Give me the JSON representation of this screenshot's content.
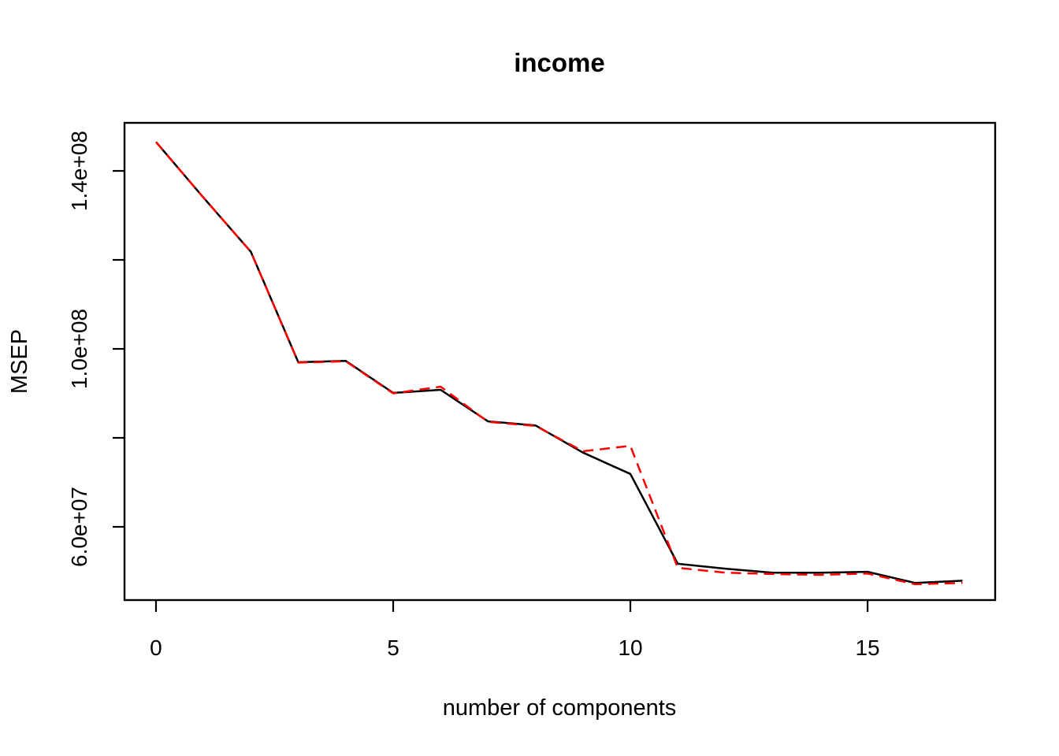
{
  "chart_data": {
    "type": "line",
    "title": "income",
    "xlabel": "number of components",
    "ylabel": "MSEP",
    "x": [
      0,
      1,
      2,
      3,
      4,
      5,
      6,
      7,
      8,
      9,
      10,
      11,
      12,
      13,
      14,
      15,
      16,
      17
    ],
    "series": [
      {
        "name": "black_solid",
        "color": "#000000",
        "style": "solid",
        "values": [
          146500000,
          134000000,
          121800000,
          97000000,
          97300000,
          90100000,
          90800000,
          83700000,
          82800000,
          76700000,
          71900000,
          51700000,
          50600000,
          49700000,
          49700000,
          49900000,
          47400000,
          47900000
        ]
      },
      {
        "name": "red_dashed",
        "color": "#ff0000",
        "style": "dashed",
        "values": [
          146500000,
          134000000,
          121800000,
          96900000,
          97200000,
          90000000,
          91500000,
          83600000,
          82700000,
          77000000,
          78200000,
          50800000,
          49700000,
          49400000,
          49200000,
          49500000,
          47100000,
          47400000
        ]
      }
    ],
    "xlim": [
      -0.664,
      17.69
    ],
    "ylim": [
      43540000,
      150800000
    ],
    "xticks": [
      {
        "value": 0,
        "label": "0"
      },
      {
        "value": 5,
        "label": "5"
      },
      {
        "value": 10,
        "label": "10"
      },
      {
        "value": 15,
        "label": "15"
      }
    ],
    "yticks": [
      {
        "value": 140000000,
        "label": "1.4e+08"
      },
      {
        "value": 120000000,
        "label": ""
      },
      {
        "value": 100000000,
        "label": "1.0e+08"
      },
      {
        "value": 80000000,
        "label": ""
      },
      {
        "value": 60000000,
        "label": "6.0e+07"
      }
    ],
    "grid": false,
    "legend": "none",
    "frame_color": "#000000",
    "background_color": "#ffffff"
  }
}
